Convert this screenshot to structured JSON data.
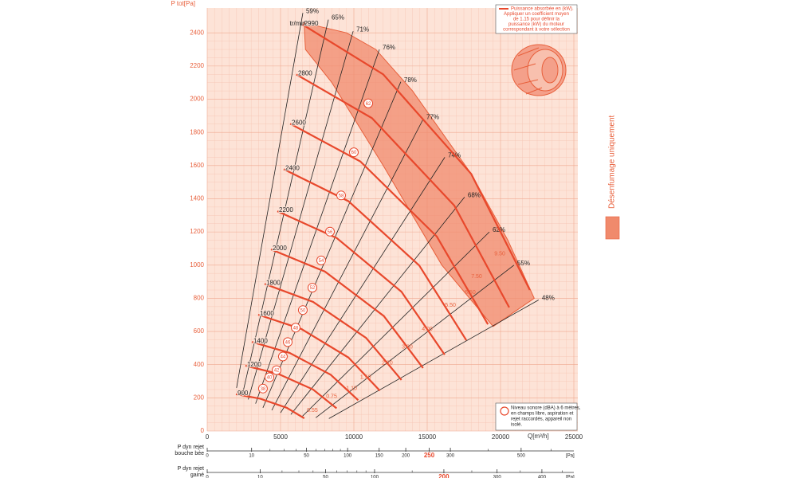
{
  "chart_data": {
    "type": "fan-curve",
    "y_label": "P tot[Pa]",
    "x_label": "Q[m³/h]",
    "xlim": [
      0,
      25000
    ],
    "xticks": [
      0,
      5000,
      10000,
      15000,
      20000,
      25000
    ],
    "ylim": [
      0,
      2550
    ],
    "yticks": [
      0,
      200,
      400,
      600,
      800,
      1000,
      1200,
      1400,
      1600,
      1800,
      2000,
      2200,
      2400
    ],
    "grid": true,
    "axis_color": "#e8603c",
    "speed_unit": "tr/min",
    "speed_color": "#e8482c",
    "speed_curves": [
      {
        "name": "900",
        "x": [
          1957,
          3612,
          5418,
          6622
        ],
        "values": [
          222,
          195,
          140,
          77
        ]
      },
      {
        "name": "1200",
        "x": [
          2607,
          4812,
          7218,
          8822
        ],
        "values": [
          394,
          346,
          250,
          137
        ]
      },
      {
        "name": "1400",
        "x": [
          3042,
          5616,
          8424,
          10296
        ],
        "values": [
          537,
          471,
          339,
          186
        ]
      },
      {
        "name": "1600",
        "x": [
          3478,
          6420,
          9630,
          11770
        ],
        "values": [
          701,
          615,
          443,
          243
        ]
      },
      {
        "name": "1800",
        "x": [
          3913,
          7224,
          10836,
          13244
        ],
        "values": [
          887,
          778,
          561,
          308
        ]
      },
      {
        "name": "2000",
        "x": [
          4349,
          8028,
          12042,
          14718
        ],
        "values": [
          1095,
          961,
          693,
          380
        ]
      },
      {
        "name": "2200",
        "x": [
          4784,
          8832,
          13248,
          16192
        ],
        "values": [
          1325,
          1163,
          839,
          460
        ]
      },
      {
        "name": "2400",
        "x": [
          5220,
          9636,
          14454,
          17666
        ],
        "values": [
          1578,
          1385,
          998,
          547
        ]
      },
      {
        "name": "2600",
        "x": [
          5655,
          10440,
          15660,
          19140
        ],
        "values": [
          1852,
          1625,
          1172,
          643
        ]
      },
      {
        "name": "2800",
        "x": [
          6084,
          11232,
          16848,
          20592
        ],
        "values": [
          2149,
          1886,
          1359,
          745
        ]
      },
      {
        "name": "2990",
        "x": [
          6500,
          12000,
          18000,
          22000
        ],
        "values": [
          2450,
          2150,
          1550,
          850
        ]
      }
    ],
    "efficiency_color": "#222222",
    "efficiency_lines": [
      {
        "name": "59%",
        "x": [
          6520,
          2000
        ],
        "values": [
          2520,
          260
        ]
      },
      {
        "name": "65%",
        "x": [
          8260,
          2400
        ],
        "values": [
          2480,
          220
        ]
      },
      {
        "name": "71%",
        "x": [
          9950,
          2800
        ],
        "values": [
          2410,
          190
        ]
      },
      {
        "name": "76%",
        "x": [
          11740,
          3300
        ],
        "values": [
          2300,
          165
        ]
      },
      {
        "name": "78%",
        "x": [
          13200,
          3800
        ],
        "values": [
          2105,
          140
        ]
      },
      {
        "name": "77%",
        "x": [
          14730,
          4400
        ],
        "values": [
          1880,
          125
        ]
      },
      {
        "name": "74%",
        "x": [
          16200,
          5000
        ],
        "values": [
          1650,
          110
        ]
      },
      {
        "name": "68%",
        "x": [
          17550,
          5700
        ],
        "values": [
          1410,
          100
        ]
      },
      {
        "name": "62%",
        "x": [
          19240,
          6500
        ],
        "values": [
          1200,
          90
        ]
      },
      {
        "name": "55%",
        "x": [
          20920,
          7400
        ],
        "values": [
          1000,
          80
        ]
      },
      {
        "name": "48%",
        "x": [
          22600,
          8300
        ],
        "values": [
          790,
          75
        ]
      }
    ],
    "power_color": "#e8603c",
    "power_labels": {
      "values": [
        9.5,
        7.5,
        6.5,
        5.5,
        4,
        3,
        2.2,
        1.5,
        1.1,
        0.75,
        0.55
      ],
      "value_labels": [
        "9.50",
        "7.50",
        "6.50",
        "5.50",
        "4.00",
        "3.00",
        "2.20",
        "1.50",
        "1.10",
        "0.75",
        "0.55"
      ],
      "x": [
        19950,
        18370,
        17930,
        16580,
        15000,
        13640,
        12280,
        10800,
        9840,
        8480,
        7170
      ],
      "y": [
        1067,
        932,
        835,
        758,
        613,
        507,
        410,
        324,
        256,
        208,
        125
      ]
    },
    "noise_levels": {
      "values": [
        62,
        60,
        58,
        56,
        54,
        52,
        50,
        48,
        46,
        44,
        42,
        40,
        38
      ],
      "x": [
        10980,
        10000,
        9130,
        8370,
        7770,
        7170,
        6520,
        6030,
        5490,
        5160,
        4730,
        4240,
        3800
      ],
      "y": [
        1975,
        1680,
        1420,
        1202,
        1028,
        864,
        729,
        623,
        536,
        449,
        367,
        324,
        256
      ]
    },
    "smoke_zone": {
      "name": "Désenfumage uniquement",
      "color": "#f08a6c",
      "x": [
        6600,
        9500,
        11500,
        14000,
        18000,
        20500,
        22300,
        19500,
        16000,
        12000,
        8500,
        6700
      ],
      "values": [
        2460,
        2400,
        2300,
        2050,
        1550,
        1150,
        800,
        630,
        1000,
        1600,
        2100,
        2300
      ]
    },
    "power_note": [
      "Puissance absorbée en (kW).",
      "Appliquer un coefficient moyen",
      "de 1.15 pour définir la",
      "puissance (kW) du moteur",
      "correspondant à votre sélection"
    ],
    "noise_note": [
      "Niveau sonore (dBA) à 6 mètres,",
      "en champs libre, aspiration et",
      "rejet raccordés, appareil non",
      "isolé."
    ],
    "scales": [
      {
        "label": [
          "P dyn rejet",
          "bouche bée"
        ],
        "unit": "[Pa]",
        "lim": [
          0,
          682
        ],
        "ticks": [
          0,
          10,
          50,
          100,
          150,
          200,
          250,
          300,
          500
        ],
        "minor_ticks": [
          20,
          30,
          40,
          60,
          70,
          80,
          90,
          400,
          600
        ],
        "highlight": 250
      },
      {
        "label": [
          "P dyn rejet",
          "gainé"
        ],
        "unit": "[Pa]",
        "lim": [
          0,
          480
        ],
        "ticks": [
          0,
          10,
          50,
          100,
          200,
          300,
          400
        ],
        "minor_ticks": [
          20,
          30,
          40,
          60,
          70,
          80,
          90,
          150,
          250,
          350,
          450
        ],
        "highlight": 200
      }
    ]
  }
}
